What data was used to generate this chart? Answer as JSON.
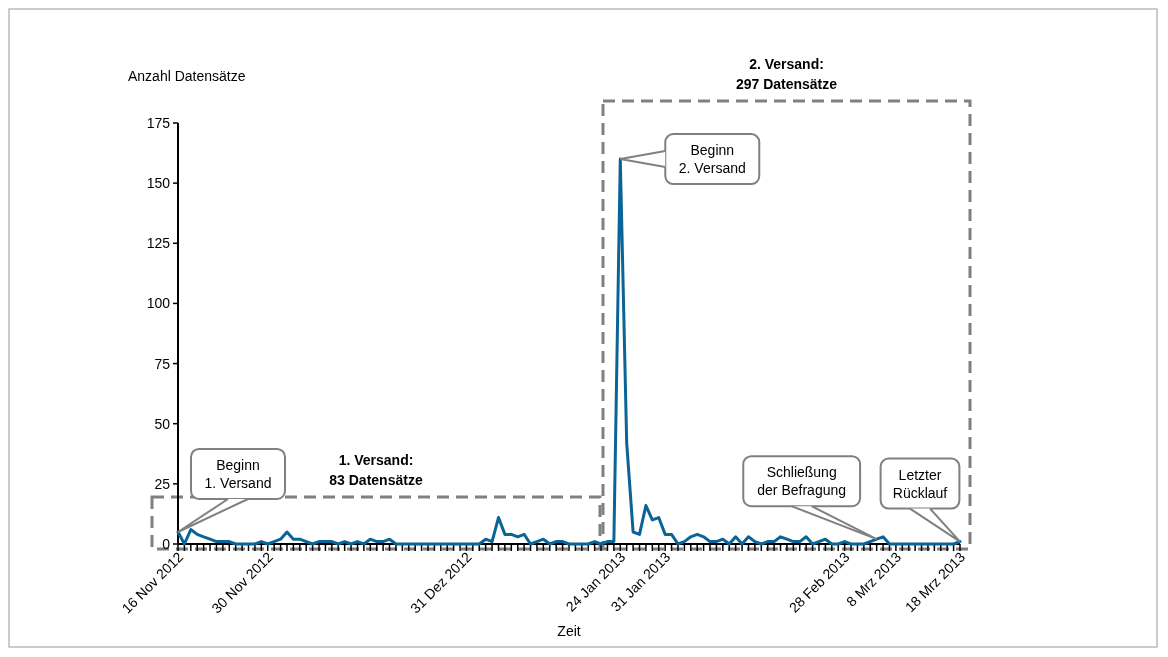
{
  "chart_data": {
    "type": "line",
    "ylabel": "Anzahl Datensätze",
    "xlabel": "Zeit",
    "x": [
      "2012-11-16",
      "2012-11-17",
      "2012-11-18",
      "2012-11-19",
      "2012-11-20",
      "2012-11-21",
      "2012-11-22",
      "2012-11-23",
      "2012-11-24",
      "2012-11-25",
      "2012-11-26",
      "2012-11-27",
      "2012-11-28",
      "2012-11-29",
      "2012-11-30",
      "2012-12-01",
      "2012-12-02",
      "2012-12-03",
      "2012-12-04",
      "2012-12-05",
      "2012-12-06",
      "2012-12-07",
      "2012-12-08",
      "2012-12-09",
      "2012-12-10",
      "2012-12-11",
      "2012-12-12",
      "2012-12-13",
      "2012-12-14",
      "2012-12-15",
      "2012-12-16",
      "2012-12-17",
      "2012-12-18",
      "2012-12-19",
      "2012-12-20",
      "2012-12-21",
      "2012-12-22",
      "2012-12-23",
      "2012-12-24",
      "2012-12-25",
      "2012-12-26",
      "2012-12-27",
      "2012-12-28",
      "2012-12-29",
      "2012-12-30",
      "2012-12-31",
      "2013-01-01",
      "2013-01-02",
      "2013-01-03",
      "2013-01-04",
      "2013-01-05",
      "2013-01-06",
      "2013-01-07",
      "2013-01-08",
      "2013-01-09",
      "2013-01-10",
      "2013-01-11",
      "2013-01-12",
      "2013-01-13",
      "2013-01-14",
      "2013-01-15",
      "2013-01-16",
      "2013-01-17",
      "2013-01-18",
      "2013-01-19",
      "2013-01-20",
      "2013-01-21",
      "2013-01-22",
      "2013-01-23",
      "2013-01-24",
      "2013-01-25",
      "2013-01-26",
      "2013-01-27",
      "2013-01-28",
      "2013-01-29",
      "2013-01-30",
      "2013-01-31",
      "2013-02-01",
      "2013-02-02",
      "2013-02-03",
      "2013-02-04",
      "2013-02-05",
      "2013-02-06",
      "2013-02-07",
      "2013-02-08",
      "2013-02-09",
      "2013-02-10",
      "2013-02-11",
      "2013-02-12",
      "2013-02-13",
      "2013-02-14",
      "2013-02-15",
      "2013-02-16",
      "2013-02-17",
      "2013-02-18",
      "2013-02-19",
      "2013-02-20",
      "2013-02-21",
      "2013-02-22",
      "2013-02-23",
      "2013-02-24",
      "2013-02-25",
      "2013-02-26",
      "2013-02-27",
      "2013-02-28",
      "2013-03-01",
      "2013-03-02",
      "2013-03-03",
      "2013-03-04",
      "2013-03-05",
      "2013-03-06",
      "2013-03-07",
      "2013-03-08",
      "2013-03-09",
      "2013-03-10",
      "2013-03-11",
      "2013-03-12",
      "2013-03-13",
      "2013-03-14",
      "2013-03-15",
      "2013-03-16",
      "2013-03-17",
      "2013-03-18"
    ],
    "series": [
      {
        "color": "#0a6496",
        "values": [
          5,
          0,
          6,
          4,
          3,
          2,
          1,
          1,
          1,
          0,
          0,
          0,
          0,
          1,
          0,
          1,
          2,
          5,
          2,
          2,
          1,
          0,
          1,
          1,
          1,
          0,
          1,
          0,
          1,
          0,
          2,
          1,
          1,
          2,
          0,
          0,
          0,
          0,
          0,
          0,
          0,
          0,
          0,
          0,
          0,
          0,
          0,
          0,
          2,
          1,
          11,
          4,
          4,
          3,
          4,
          0,
          1,
          2,
          0,
          1,
          1,
          0,
          0,
          0,
          0,
          1,
          0,
          1,
          1,
          160,
          42,
          5,
          4,
          16,
          10,
          11,
          4,
          4,
          0,
          1,
          3,
          4,
          3,
          1,
          1,
          2,
          0,
          3,
          0,
          3,
          1,
          0,
          1,
          1,
          3,
          2,
          1,
          1,
          3,
          0,
          1,
          2,
          0,
          0,
          1,
          0,
          0,
          0,
          1,
          2,
          3,
          0,
          0,
          0,
          0,
          0,
          0,
          0,
          0,
          0,
          0,
          0,
          1
        ]
      }
    ],
    "xlim": [
      "2012-11-16",
      "2013-03-18"
    ],
    "xticks": [
      {
        "value": "2012-11-16",
        "label": "16 Nov 2012"
      },
      {
        "value": "2012-11-30",
        "label": "30 Nov 2012"
      },
      {
        "value": "2012-12-31",
        "label": "31 Dez 2012"
      },
      {
        "value": "2013-01-24",
        "label": "24 Jan 2013"
      },
      {
        "value": "2013-01-31",
        "label": "31 Jan 2013"
      },
      {
        "value": "2013-02-28",
        "label": "28 Feb 2013"
      },
      {
        "value": "2013-03-08",
        "label": "8 Mrz 2013"
      },
      {
        "value": "2013-03-18",
        "label": "18 Mrz 2013"
      }
    ],
    "ylim": [
      0,
      175
    ],
    "yticks": [
      0,
      25,
      50,
      75,
      100,
      125,
      150,
      175
    ],
    "line_style": "solid",
    "marker": "none",
    "grid": false,
    "annotations": [
      "1. Versand:\n83 Datensätze",
      "2. Versand:\n297 Datensätze",
      {
        "text": "Beginn\n1. Versand",
        "x": "2012-11-16",
        "y": 5
      },
      {
        "text": "Beginn\n2. Versand",
        "x": "2013-01-24",
        "y": 160
      },
      {
        "text": "Schließung\nder Befragung",
        "x": "2013-03-05",
        "y": 2
      },
      "Letzter\nRücklauf"
    ]
  }
}
